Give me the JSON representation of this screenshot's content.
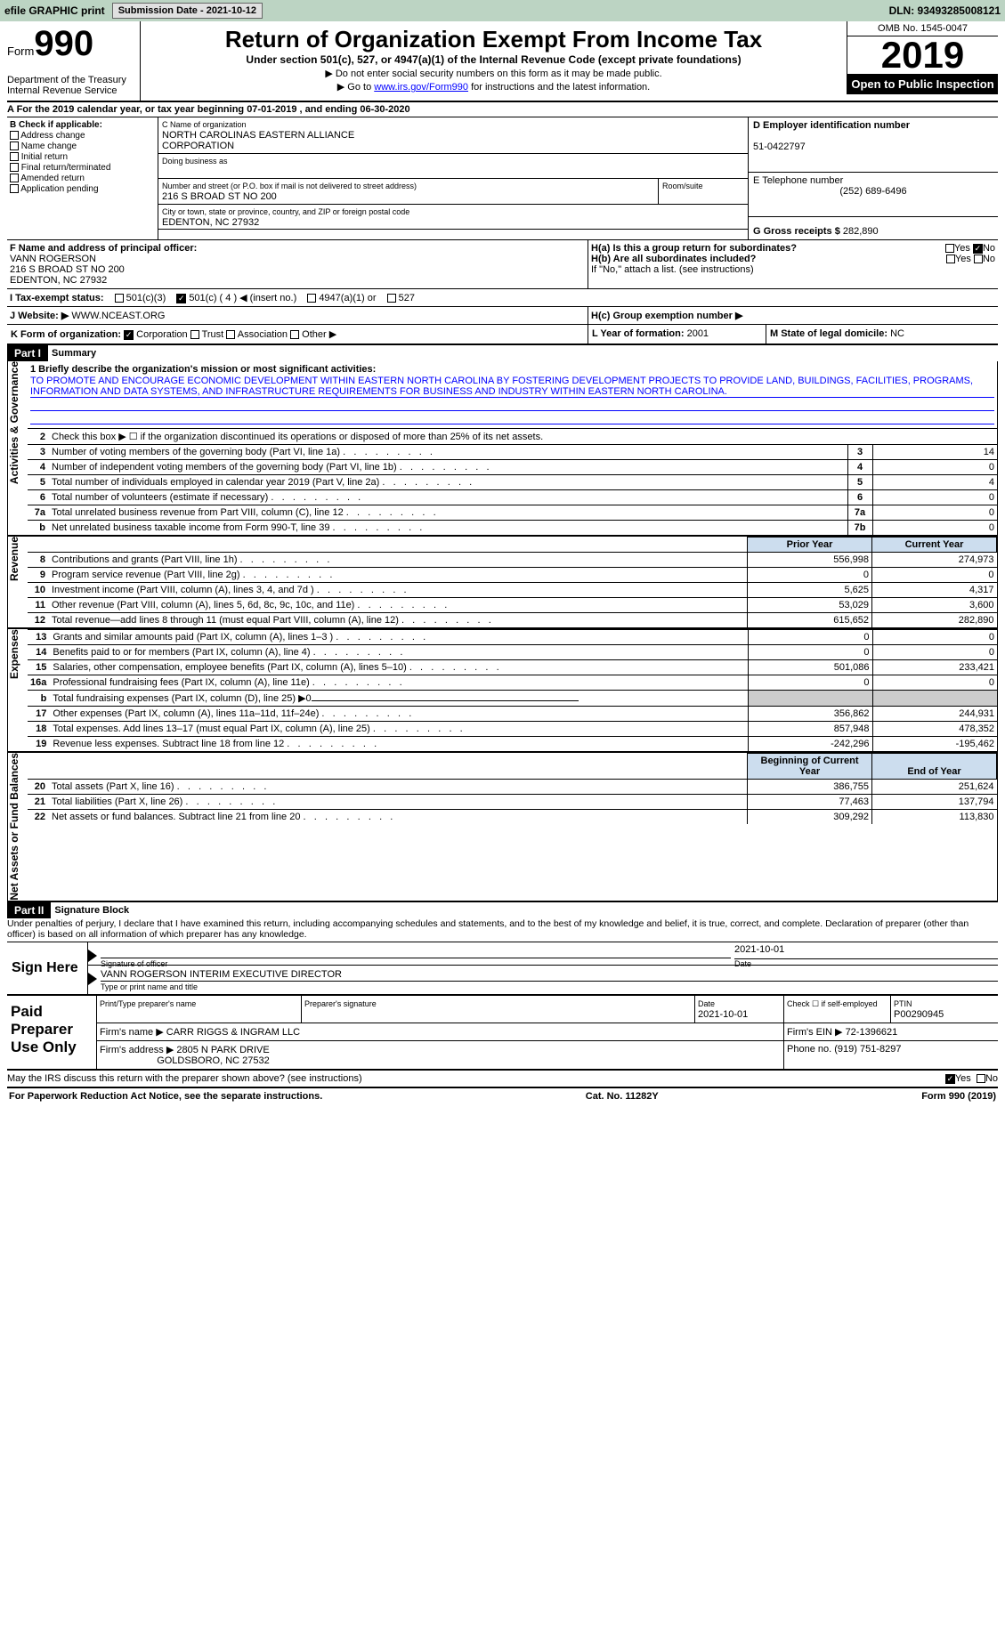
{
  "topbar": {
    "efile_label": "efile GRAPHIC print",
    "submission_label": "Submission Date - 2021-10-12",
    "dln_label": "DLN: 93493285008121"
  },
  "header": {
    "form_word": "Form",
    "form_num": "990",
    "dept1": "Department of the Treasury",
    "dept2": "Internal Revenue Service",
    "title": "Return of Organization Exempt From Income Tax",
    "sub": "Under section 501(c), 527, or 4947(a)(1) of the Internal Revenue Code (except private foundations)",
    "note1": "▶ Do not enter social security numbers on this form as it may be made public.",
    "note2_pre": "▶ Go to ",
    "note2_link": "www.irs.gov/Form990",
    "note2_post": " for instructions and the latest information.",
    "omb": "OMB No. 1545-0047",
    "year": "2019",
    "open_pub": "Open to Public Inspection"
  },
  "period": {
    "text": "A For the 2019 calendar year, or tax year beginning 07-01-2019    , and ending 06-30-2020"
  },
  "boxB": {
    "hdr": "B Check if applicable:",
    "addr": "Address change",
    "name": "Name change",
    "init": "Initial return",
    "final": "Final return/terminated",
    "amend": "Amended return",
    "app": "Application pending"
  },
  "boxC": {
    "name_lbl": "C Name of organization",
    "name1": "NORTH CAROLINAS EASTERN ALLIANCE",
    "name2": "CORPORATION",
    "dba_lbl": "Doing business as",
    "addr_lbl": "Number and street (or P.O. box if mail is not delivered to street address)",
    "addr": "216 S BROAD ST NO 200",
    "room_lbl": "Room/suite",
    "city_lbl": "City or town, state or province, country, and ZIP or foreign postal code",
    "city": "EDENTON, NC  27932"
  },
  "boxD": {
    "lbl": "D Employer identification number",
    "val": "51-0422797"
  },
  "boxE": {
    "lbl": "E Telephone number",
    "val": "(252) 689-6496"
  },
  "boxG": {
    "lbl": "G Gross receipts $",
    "val": "282,890"
  },
  "boxF": {
    "lbl": "F  Name and address of principal officer:",
    "name": "VANN ROGERSON",
    "addr1": "216 S BROAD ST NO 200",
    "addr2": "EDENTON, NC  27932"
  },
  "boxH": {
    "a": "H(a)  Is this a group return for subordinates?",
    "b": "H(b)  Are all subordinates included?",
    "note": "If \"No,\" attach a list. (see instructions)",
    "c": "H(c)  Group exemption number ▶",
    "yes": "Yes",
    "no": "No"
  },
  "taxI": {
    "lbl": "I   Tax-exempt status:",
    "o1": "501(c)(3)",
    "o2": "501(c) ( 4 ) ◀ (insert no.)",
    "o3": "4947(a)(1) or",
    "o4": "527"
  },
  "taxJ": {
    "lbl": "J  Website: ▶",
    "val": " WWW.NCEAST.ORG"
  },
  "taxK": {
    "lbl": "K Form of organization:",
    "corp": "Corporation",
    "trust": "Trust",
    "assoc": "Association",
    "other": "Other ▶"
  },
  "taxL": {
    "lbl": "L Year of formation:",
    "val": "2001"
  },
  "taxM": {
    "lbl": "M State of legal domicile:",
    "val": "NC"
  },
  "part1": {
    "hdr": "Part I",
    "title": "Summary",
    "line1_lbl": "1 Briefly describe the organization's mission or most significant activities:",
    "mission": "TO PROMOTE AND ENCOURAGE ECONOMIC DEVELOPMENT WITHIN EASTERN NORTH CAROLINA BY FOSTERING DEVELOPMENT PROJECTS TO PROVIDE LAND, BUILDINGS, FACILITIES, PROGRAMS, INFORMATION AND DATA SYSTEMS, AND INFRASTRUCTURE REQUIREMENTS FOR BUSINESS AND INDUSTRY WITHIN EASTERN NORTH CAROLINA.",
    "vtab_gov": "Activities & Governance",
    "vtab_rev": "Revenue",
    "vtab_exp": "Expenses",
    "vtab_net": "Net Assets or Fund Balances",
    "line2": "Check this box ▶ ☐ if the organization discontinued its operations or disposed of more than 25% of its net assets.",
    "rows_gov": [
      {
        "n": "3",
        "t": "Number of voting members of the governing body (Part VI, line 1a)",
        "b": "3",
        "v": "14"
      },
      {
        "n": "4",
        "t": "Number of independent voting members of the governing body (Part VI, line 1b)",
        "b": "4",
        "v": "0"
      },
      {
        "n": "5",
        "t": "Total number of individuals employed in calendar year 2019 (Part V, line 2a)",
        "b": "5",
        "v": "4"
      },
      {
        "n": "6",
        "t": "Total number of volunteers (estimate if necessary)",
        "b": "6",
        "v": "0"
      },
      {
        "n": "7a",
        "t": "Total unrelated business revenue from Part VIII, column (C), line 12",
        "b": "7a",
        "v": "0"
      },
      {
        "n": "b",
        "t": "Net unrelated business taxable income from Form 990-T, line 39",
        "b": "7b",
        "v": "0"
      }
    ],
    "col_prior": "Prior Year",
    "col_curr": "Current Year",
    "rows_rev": [
      {
        "n": "8",
        "t": "Contributions and grants (Part VIII, line 1h)",
        "p": "556,998",
        "c": "274,973"
      },
      {
        "n": "9",
        "t": "Program service revenue (Part VIII, line 2g)",
        "p": "0",
        "c": "0"
      },
      {
        "n": "10",
        "t": "Investment income (Part VIII, column (A), lines 3, 4, and 7d )",
        "p": "5,625",
        "c": "4,317"
      },
      {
        "n": "11",
        "t": "Other revenue (Part VIII, column (A), lines 5, 6d, 8c, 9c, 10c, and 11e)",
        "p": "53,029",
        "c": "3,600"
      },
      {
        "n": "12",
        "t": "Total revenue—add lines 8 through 11 (must equal Part VIII, column (A), line 12)",
        "p": "615,652",
        "c": "282,890"
      }
    ],
    "rows_exp": [
      {
        "n": "13",
        "t": "Grants and similar amounts paid (Part IX, column (A), lines 1–3 )",
        "p": "0",
        "c": "0"
      },
      {
        "n": "14",
        "t": "Benefits paid to or for members (Part IX, column (A), line 4)",
        "p": "0",
        "c": "0"
      },
      {
        "n": "15",
        "t": "Salaries, other compensation, employee benefits (Part IX, column (A), lines 5–10)",
        "p": "501,086",
        "c": "233,421"
      },
      {
        "n": "16a",
        "t": "Professional fundraising fees (Part IX, column (A), line 11e)",
        "p": "0",
        "c": "0"
      },
      {
        "n": "b",
        "t": "Total fundraising expenses (Part IX, column (D), line 25) ▶0",
        "p": "",
        "c": ""
      },
      {
        "n": "17",
        "t": "Other expenses (Part IX, column (A), lines 11a–11d, 11f–24e)",
        "p": "356,862",
        "c": "244,931"
      },
      {
        "n": "18",
        "t": "Total expenses. Add lines 13–17 (must equal Part IX, column (A), line 25)",
        "p": "857,948",
        "c": "478,352"
      },
      {
        "n": "19",
        "t": "Revenue less expenses. Subtract line 18 from line 12",
        "p": "-242,296",
        "c": "-195,462"
      }
    ],
    "col_begin": "Beginning of Current Year",
    "col_end": "End of Year",
    "rows_net": [
      {
        "n": "20",
        "t": "Total assets (Part X, line 16)",
        "p": "386,755",
        "c": "251,624"
      },
      {
        "n": "21",
        "t": "Total liabilities (Part X, line 26)",
        "p": "77,463",
        "c": "137,794"
      },
      {
        "n": "22",
        "t": "Net assets or fund balances. Subtract line 21 from line 20",
        "p": "309,292",
        "c": "113,830"
      }
    ]
  },
  "part2": {
    "hdr": "Part II",
    "title": "Signature Block",
    "decl": "Under penalties of perjury, I declare that I have examined this return, including accompanying schedules and statements, and to the best of my knowledge and belief, it is true, correct, and complete. Declaration of preparer (other than officer) is based on all information of which preparer has any knowledge.",
    "sign_here": "Sign Here",
    "sig_officer_lbl": "Signature of officer",
    "sig_date": "2021-10-01",
    "date_lbl": "Date",
    "officer_name": "VANN ROGERSON  INTERIM EXECUTIVE DIRECTOR",
    "type_lbl": "Type or print name and title",
    "paid_lbl": "Paid Preparer Use Only",
    "prep_name_lbl": "Print/Type preparer's name",
    "prep_sig_lbl": "Preparer's signature",
    "prep_date": "2021-10-01",
    "check_if": "Check ☐ if self-employed",
    "ptin_lbl": "PTIN",
    "ptin": "P00290945",
    "firm_name_lbl": "Firm's name    ▶",
    "firm_name": "CARR RIGGS & INGRAM LLC",
    "firm_ein_lbl": "Firm's EIN ▶",
    "firm_ein": "72-1396621",
    "firm_addr_lbl": "Firm's address ▶",
    "firm_addr1": "2805 N PARK DRIVE",
    "firm_addr2": "GOLDSBORO, NC  27532",
    "phone_lbl": "Phone no.",
    "phone": "(919) 751-8297",
    "discuss": "May the IRS discuss this return with the preparer shown above? (see instructions)",
    "yes": "Yes",
    "no": "No"
  },
  "footer": {
    "pra": "For Paperwork Reduction Act Notice, see the separate instructions.",
    "cat": "Cat. No. 11282Y",
    "form": "Form 990 (2019)"
  }
}
